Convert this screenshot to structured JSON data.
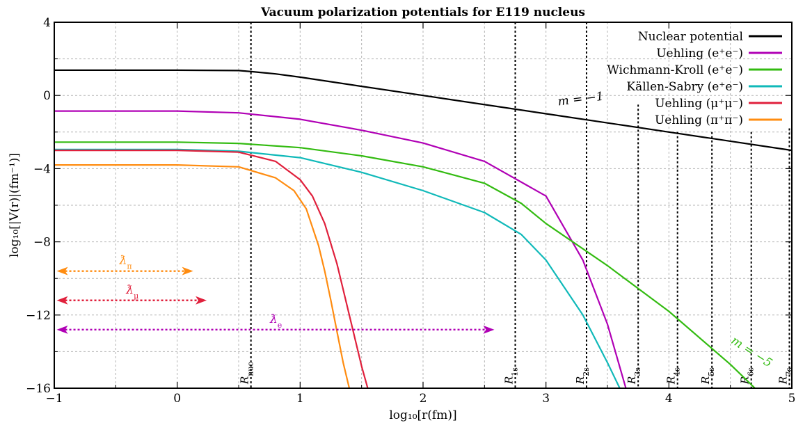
{
  "chart_data": {
    "type": "line",
    "title": "Vacuum polarization potentials for E119 nucleus",
    "xlabel": "log₁₀[r(fm)]",
    "ylabel": "log₁₀[|V(r)|(fm⁻¹)]",
    "xlim": [
      -1,
      5
    ],
    "ylim": [
      -16,
      4
    ],
    "xticks": [
      "−1",
      "0",
      "1",
      "2",
      "3",
      "4",
      "5"
    ],
    "yticks": [
      "−16",
      "−12",
      "−8",
      "−4",
      "0",
      "4"
    ],
    "grid": true,
    "legend_position": "top-right",
    "series": [
      {
        "name": "Nuclear potential",
        "color": "#000000",
        "x": [
          -1,
          0,
          0.5,
          0.61,
          0.8,
          1.0,
          1.5,
          2.0,
          3.0,
          4.0,
          5.0
        ],
        "y": [
          1.38,
          1.38,
          1.36,
          1.3,
          1.18,
          1.0,
          0.5,
          0.0,
          -1.0,
          -2.0,
          -3.0
        ]
      },
      {
        "name": "Uehling (e⁺e⁻)",
        "color": "#b000b5",
        "x": [
          -1,
          0,
          0.5,
          1.0,
          1.5,
          2.0,
          2.5,
          3.0,
          3.3,
          3.5,
          3.65
        ],
        "y": [
          -0.85,
          -0.85,
          -0.95,
          -1.3,
          -1.9,
          -2.6,
          -3.6,
          -5.5,
          -9.0,
          -12.5,
          -16
        ]
      },
      {
        "name": "Wichmann-Kroll (e⁺e⁻)",
        "color": "#33bb11",
        "x": [
          -1,
          0,
          0.5,
          1.0,
          1.5,
          2.0,
          2.5,
          2.8,
          3.0,
          3.5,
          4.0,
          4.5,
          4.7
        ],
        "y": [
          -2.55,
          -2.55,
          -2.62,
          -2.85,
          -3.3,
          -3.9,
          -4.8,
          -5.9,
          -7.0,
          -9.3,
          -11.8,
          -14.7,
          -16
        ]
      },
      {
        "name": "Källen-Sabry (e⁺e⁻)",
        "color": "#10b9b9",
        "x": [
          -1,
          0,
          0.5,
          1.0,
          1.5,
          2.0,
          2.5,
          2.8,
          3.0,
          3.3,
          3.5,
          3.6
        ],
        "y": [
          -2.95,
          -2.95,
          -3.05,
          -3.4,
          -4.2,
          -5.2,
          -6.4,
          -7.6,
          -9.0,
          -12.0,
          -14.6,
          -16
        ]
      },
      {
        "name": "Uehling (μ⁺μ⁻)",
        "color": "#e0203c",
        "x": [
          -1,
          0,
          0.5,
          0.8,
          1.0,
          1.1,
          1.2,
          1.3,
          1.4,
          1.5,
          1.55
        ],
        "y": [
          -3.0,
          -3.0,
          -3.1,
          -3.6,
          -4.6,
          -5.5,
          -7.0,
          -9.2,
          -12.0,
          -14.8,
          -16
        ]
      },
      {
        "name": "Uehling (π⁺π⁻)",
        "color": "#ff8c10",
        "x": [
          -1,
          0,
          0.5,
          0.8,
          0.95,
          1.05,
          1.15,
          1.2,
          1.25,
          1.3,
          1.35,
          1.4
        ],
        "y": [
          -3.8,
          -3.8,
          -3.9,
          -4.5,
          -5.2,
          -6.2,
          -8.2,
          -9.6,
          -11.2,
          -12.9,
          -14.6,
          -16
        ]
      }
    ],
    "radius_markers": [
      {
        "label": "R_nuc",
        "main": "R",
        "sub": "nuc",
        "x": 0.6,
        "ytop": 4
      },
      {
        "label": "R_1s",
        "main": "R",
        "sub": "1s",
        "x": 2.75,
        "ytop": 4
      },
      {
        "label": "R_2s",
        "main": "R",
        "sub": "2s",
        "x": 3.33,
        "ytop": 4
      },
      {
        "label": "R_3s",
        "main": "R",
        "sub": "3s",
        "x": 3.75,
        "ytop": -0.5
      },
      {
        "label": "R_4s",
        "main": "R",
        "sub": "4s",
        "x": 4.07,
        "ytop": -2.0
      },
      {
        "label": "R_5s",
        "main": "R",
        "sub": "5s",
        "x": 4.35,
        "ytop": -2.0
      },
      {
        "label": "R_6s",
        "main": "R",
        "sub": "6s",
        "x": 4.67,
        "ytop": -2.0
      },
      {
        "label": "R_7s",
        "main": "R",
        "sub": "7s",
        "x": 4.98,
        "ytop": -1.8
      }
    ],
    "wavelength_arrows": [
      {
        "label": "ƛ_π",
        "main": "ƛ",
        "sub": "π",
        "color": "#ff8c10",
        "x1": -0.98,
        "x2": 0.13,
        "y": -9.6
      },
      {
        "label": "ƛ_μ",
        "main": "ƛ",
        "sub": "μ",
        "color": "#e0203c",
        "x1": -0.98,
        "x2": 0.24,
        "y": -11.2
      },
      {
        "label": "ƛ_e",
        "main": "ƛ",
        "sub": "e",
        "color": "#b000b5",
        "x1": -0.98,
        "x2": 2.58,
        "y": -12.8
      }
    ],
    "slope_annotations": [
      {
        "label": "m = −1",
        "color": "#000000",
        "x": 3.1,
        "y": -0.55,
        "angle": -7
      },
      {
        "label": "m = −5",
        "color": "#33bb11",
        "x": 4.5,
        "y": -13.5,
        "angle": 33
      }
    ]
  }
}
